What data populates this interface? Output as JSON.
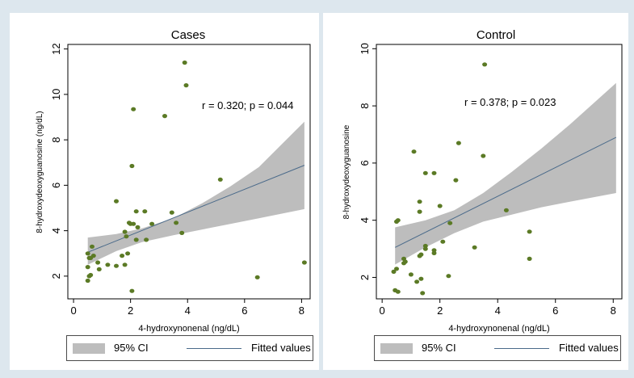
{
  "colors": {
    "outer_background": "#dde7ee",
    "panel_background": "#ffffff",
    "ci_fill": "#bdbdbd",
    "fit_line": "#4a6a8a",
    "marker": "#5b7a25"
  },
  "chart_data": [
    {
      "type": "scatter",
      "title": "Cases",
      "xlabel": "4-hydroxynonenal (ng/dL)",
      "ylabel": "8-hydroxydeoxyguanosine (ng/dL)",
      "xlim": [
        -0.2,
        8.3
      ],
      "ylim": [
        1.0,
        12.2
      ],
      "xticks": [
        0,
        2,
        4,
        6,
        8
      ],
      "yticks": [
        2,
        4,
        6,
        8,
        10,
        12
      ],
      "annotation": "r = 0.320;  p = 0.044",
      "fitted": {
        "x": [
          0.5,
          8.1
        ],
        "y": [
          3.05,
          6.88
        ]
      },
      "ci": {
        "x": [
          0.5,
          1.5,
          2.4,
          3.5,
          4.5,
          5.5,
          6.5,
          8.1
        ],
        "lower": [
          2.5,
          3.1,
          3.5,
          3.8,
          4.05,
          4.3,
          4.55,
          4.95
        ],
        "upper": [
          3.7,
          3.85,
          4.1,
          4.55,
          5.2,
          5.95,
          6.8,
          8.8
        ]
      },
      "points": [
        [
          0.5,
          1.8
        ],
        [
          0.55,
          2.0
        ],
        [
          0.6,
          2.05
        ],
        [
          0.5,
          2.4
        ],
        [
          0.55,
          2.8
        ],
        [
          0.6,
          2.8
        ],
        [
          0.5,
          3.0
        ],
        [
          0.65,
          3.3
        ],
        [
          0.7,
          2.9
        ],
        [
          0.85,
          2.6
        ],
        [
          0.9,
          2.3
        ],
        [
          1.2,
          2.5
        ],
        [
          1.5,
          2.45
        ],
        [
          1.5,
          5.3
        ],
        [
          1.7,
          2.9
        ],
        [
          1.8,
          2.5
        ],
        [
          1.8,
          3.95
        ],
        [
          1.85,
          3.75
        ],
        [
          1.9,
          3.0
        ],
        [
          1.95,
          4.35
        ],
        [
          2.0,
          4.3
        ],
        [
          2.05,
          1.35
        ],
        [
          2.05,
          6.85
        ],
        [
          2.1,
          4.3
        ],
        [
          2.1,
          9.35
        ],
        [
          2.2,
          4.85
        ],
        [
          2.25,
          4.15
        ],
        [
          2.2,
          3.6
        ],
        [
          2.5,
          4.85
        ],
        [
          2.55,
          3.6
        ],
        [
          2.75,
          4.3
        ],
        [
          3.2,
          9.05
        ],
        [
          3.45,
          4.8
        ],
        [
          3.6,
          4.35
        ],
        [
          3.8,
          3.9
        ],
        [
          3.9,
          11.4
        ],
        [
          3.95,
          10.4
        ],
        [
          5.15,
          6.25
        ],
        [
          6.45,
          1.95
        ],
        [
          8.1,
          2.6
        ]
      ]
    },
    {
      "type": "scatter",
      "title": "Control",
      "xlabel": "4-hydroxynonenal (ng/dL)",
      "ylabel": "8-hydroxydeoxyguanosine",
      "xlim": [
        -0.2,
        8.3
      ],
      "ylim": [
        1.25,
        10.15
      ],
      "xticks": [
        0,
        2,
        4,
        6,
        8
      ],
      "yticks": [
        2,
        4,
        6,
        8,
        10
      ],
      "annotation": "r = 0.378; p = 0.023",
      "fitted": {
        "x": [
          0.45,
          8.1
        ],
        "y": [
          3.05,
          6.9
        ]
      },
      "ci": {
        "x": [
          0.45,
          1.5,
          2.5,
          3.5,
          4.5,
          5.5,
          6.5,
          8.1
        ],
        "lower": [
          2.45,
          3.05,
          3.55,
          3.95,
          4.2,
          4.45,
          4.65,
          4.95
        ],
        "upper": [
          3.75,
          4.0,
          4.35,
          4.95,
          5.7,
          6.5,
          7.35,
          8.8
        ]
      },
      "points": [
        [
          0.4,
          2.2
        ],
        [
          0.5,
          2.3
        ],
        [
          0.45,
          1.55
        ],
        [
          0.55,
          1.5
        ],
        [
          0.5,
          3.95
        ],
        [
          0.55,
          4.0
        ],
        [
          0.75,
          2.65
        ],
        [
          0.75,
          2.5
        ],
        [
          0.8,
          2.55
        ],
        [
          1.0,
          2.1
        ],
        [
          1.1,
          6.4
        ],
        [
          1.2,
          1.85
        ],
        [
          1.3,
          4.65
        ],
        [
          1.3,
          4.3
        ],
        [
          1.3,
          2.75
        ],
        [
          1.35,
          2.8
        ],
        [
          1.35,
          1.95
        ],
        [
          1.4,
          1.45
        ],
        [
          1.5,
          3.1
        ],
        [
          1.5,
          3.0
        ],
        [
          1.5,
          5.65
        ],
        [
          1.8,
          5.65
        ],
        [
          1.8,
          2.95
        ],
        [
          1.8,
          2.85
        ],
        [
          2.0,
          4.5
        ],
        [
          2.1,
          3.25
        ],
        [
          2.3,
          2.05
        ],
        [
          2.35,
          3.9
        ],
        [
          2.55,
          5.4
        ],
        [
          2.65,
          6.7
        ],
        [
          3.2,
          3.05
        ],
        [
          3.5,
          6.25
        ],
        [
          3.55,
          9.45
        ],
        [
          4.3,
          4.35
        ],
        [
          5.1,
          3.6
        ],
        [
          5.1,
          2.65
        ]
      ]
    }
  ],
  "legends": [
    {
      "ci_label": "95% CI",
      "fit_label": "Fitted values"
    },
    {
      "ci_label": "95% CI",
      "fit_label": "Fitted values"
    }
  ]
}
